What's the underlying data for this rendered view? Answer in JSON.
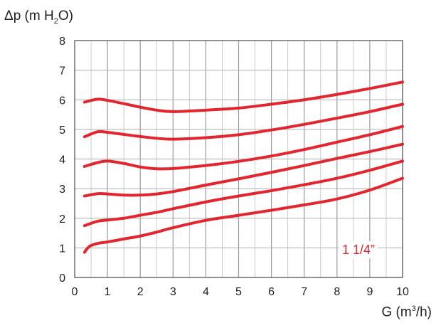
{
  "chart_data": {
    "type": "line",
    "ylabel_main": "Δp (m H",
    "ylabel_sub": "2",
    "ylabel_tail": "O)",
    "xlabel_main": "G (m",
    "xlabel_sup": "3",
    "xlabel_tail": "/h)",
    "xlim": [
      0,
      10
    ],
    "ylim": [
      0,
      8
    ],
    "x_ticks": [
      0,
      1,
      2,
      3,
      4,
      5,
      6,
      7,
      8,
      9,
      10
    ],
    "y_ticks": [
      0,
      1,
      2,
      3,
      4,
      5,
      6,
      7,
      8
    ],
    "grid": true,
    "minor_x_step": 0.5,
    "annotation": "1 1/4”",
    "line_color": "#e3262d",
    "series": [
      {
        "x": [
          0.3,
          0.7,
          1.0,
          1.5,
          2.0,
          2.5,
          3.0,
          4.0,
          5.0,
          6.0,
          7.0,
          8.0,
          9.0,
          10.0
        ],
        "y": [
          5.92,
          6.02,
          5.98,
          5.87,
          5.75,
          5.65,
          5.6,
          5.65,
          5.72,
          5.85,
          6.0,
          6.18,
          6.38,
          6.6
        ]
      },
      {
        "x": [
          0.3,
          0.7,
          1.0,
          1.5,
          2.0,
          2.5,
          3.0,
          4.0,
          5.0,
          6.0,
          7.0,
          8.0,
          9.0,
          10.0
        ],
        "y": [
          4.75,
          4.92,
          4.9,
          4.83,
          4.76,
          4.7,
          4.67,
          4.72,
          4.82,
          4.98,
          5.17,
          5.38,
          5.6,
          5.85
        ]
      },
      {
        "x": [
          0.3,
          0.7,
          1.0,
          1.5,
          2.0,
          2.5,
          3.0,
          4.0,
          5.0,
          6.0,
          7.0,
          8.0,
          9.0,
          10.0
        ],
        "y": [
          3.75,
          3.88,
          3.93,
          3.85,
          3.73,
          3.67,
          3.68,
          3.78,
          3.92,
          4.1,
          4.32,
          4.57,
          4.82,
          5.1
        ]
      },
      {
        "x": [
          0.3,
          0.7,
          1.0,
          1.5,
          2.0,
          2.5,
          3.0,
          4.0,
          5.0,
          6.0,
          7.0,
          8.0,
          9.0,
          10.0
        ],
        "y": [
          2.75,
          2.83,
          2.82,
          2.78,
          2.78,
          2.82,
          2.9,
          3.12,
          3.33,
          3.55,
          3.78,
          4.02,
          4.25,
          4.5
        ]
      },
      {
        "x": [
          0.3,
          0.7,
          1.0,
          1.5,
          2.0,
          2.5,
          3.0,
          4.0,
          5.0,
          6.0,
          7.0,
          8.0,
          9.0,
          10.0
        ],
        "y": [
          1.75,
          1.9,
          1.94,
          2.0,
          2.1,
          2.2,
          2.32,
          2.55,
          2.75,
          2.93,
          3.13,
          3.35,
          3.62,
          3.93
        ]
      },
      {
        "x": [
          0.3,
          0.45,
          0.7,
          1.0,
          1.5,
          2.0,
          2.5,
          3.0,
          4.0,
          5.0,
          6.0,
          7.0,
          8.0,
          9.0,
          10.0
        ],
        "y": [
          0.85,
          1.05,
          1.15,
          1.2,
          1.3,
          1.4,
          1.53,
          1.68,
          1.93,
          2.1,
          2.27,
          2.45,
          2.65,
          2.95,
          3.35
        ]
      }
    ]
  }
}
